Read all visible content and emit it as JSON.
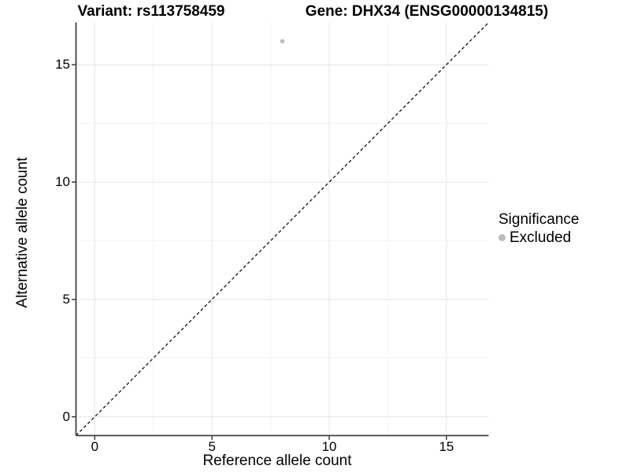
{
  "titles": {
    "variant": "Variant: rs113758459",
    "gene": "Gene: DHX34 (ENSG00000134815)"
  },
  "axes": {
    "x_label": "Reference allele count",
    "y_label": "Alternative allele count",
    "x_tick_labels": [
      "0",
      "5",
      "10",
      "15"
    ],
    "y_tick_labels": [
      "0",
      "5",
      "10",
      "15"
    ]
  },
  "legend": {
    "title": "Significance",
    "items": [
      {
        "label": "Excluded",
        "color": "#bcbcbc"
      }
    ]
  },
  "colors": {
    "point": "#bcbcbc",
    "grid_major": "#e9e9e9",
    "grid_minor": "#f4f4f4",
    "axis_line": "#404040",
    "identity_line": "#000000"
  },
  "chart_data": {
    "type": "scatter",
    "title": "Variant: rs113758459 — Gene: DHX34 (ENSG00000134815)",
    "xlabel": "Reference allele count",
    "ylabel": "Alternative allele count",
    "xlim": [
      -0.8,
      16.8
    ],
    "ylim": [
      -0.8,
      16.8
    ],
    "major_ticks": [
      0,
      5,
      10,
      15
    ],
    "minor_ticks": [
      2.5,
      7.5,
      12.5
    ],
    "grid": "on",
    "legend_position": "right",
    "series": [
      {
        "name": "Excluded",
        "color": "#bcbcbc",
        "points": [
          {
            "x": 8,
            "y": 16
          }
        ]
      }
    ],
    "reference_line": {
      "kind": "identity",
      "slope": 1,
      "intercept": 0,
      "style": "dashed"
    }
  }
}
